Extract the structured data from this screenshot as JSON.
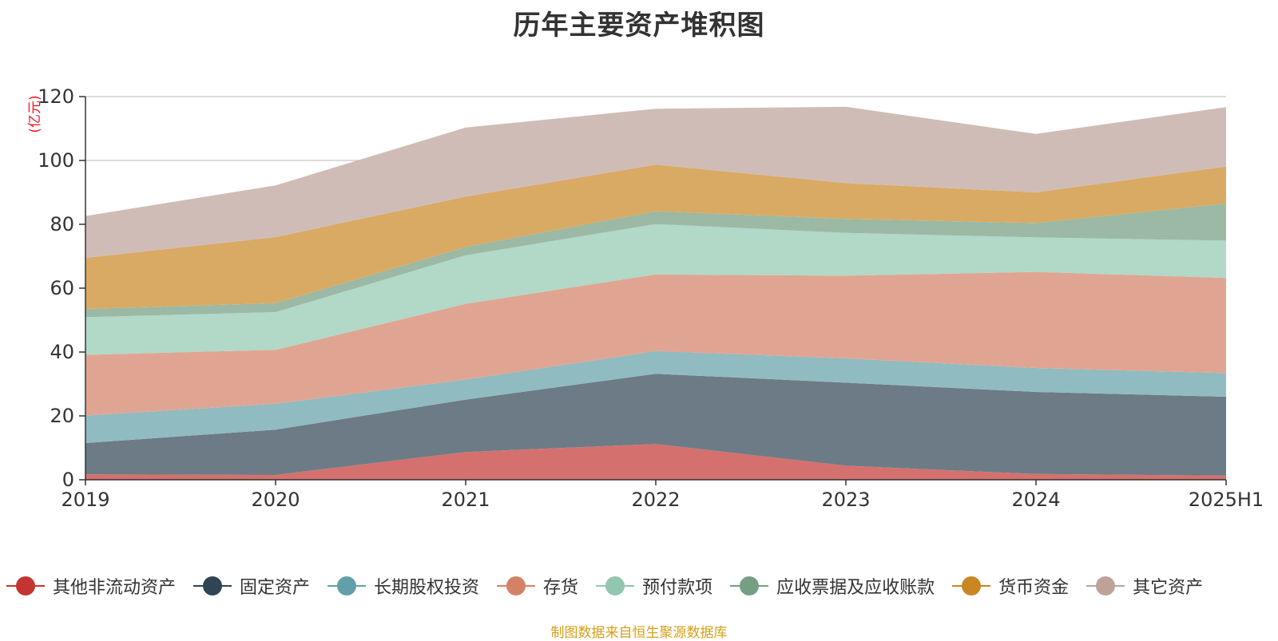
{
  "chart_data": {
    "type": "area",
    "stacked": true,
    "title": "历年主要资产堆积图",
    "ylabel": "(亿元)",
    "ylim": [
      0,
      120
    ],
    "yticks": [
      0,
      20,
      40,
      60,
      80,
      100,
      120
    ],
    "grid": true,
    "legend_position": "bottom",
    "categories": [
      "2019",
      "2020",
      "2021",
      "2022",
      "2023",
      "2024",
      "2025H1"
    ],
    "series": [
      {
        "name": "其他非流动资产",
        "color": "#c23531",
        "fill": "#d4716e",
        "values": [
          1.7,
          1.5,
          8.7,
          11.2,
          4.4,
          1.8,
          1.3
        ]
      },
      {
        "name": "固定资产",
        "color": "#2f4554",
        "fill": "#6d7b86",
        "values": [
          9.8,
          14.2,
          16.4,
          22.0,
          26.0,
          25.7,
          24.7
        ]
      },
      {
        "name": "长期股权投资",
        "color": "#61a0a8",
        "fill": "#90bbc1",
        "values": [
          8.6,
          8.1,
          6.3,
          7.1,
          7.6,
          7.5,
          7.4
        ]
      },
      {
        "name": "存货",
        "color": "#d48265",
        "fill": "#e0a592",
        "values": [
          19.0,
          16.9,
          23.7,
          24.0,
          25.9,
          30.1,
          29.8
        ]
      },
      {
        "name": "预付款项",
        "color": "#91c7ae",
        "fill": "#b2d8c7",
        "values": [
          11.8,
          11.8,
          15.2,
          15.8,
          13.4,
          10.8,
          11.7
        ]
      },
      {
        "name": "应收票据及应收账款",
        "color": "#749f83",
        "fill": "#9bb9a4",
        "values": [
          2.6,
          2.8,
          2.6,
          4.0,
          4.4,
          4.5,
          11.6
        ]
      },
      {
        "name": "货币资金",
        "color": "#ca8622",
        "fill": "#d9aa63",
        "values": [
          16.0,
          20.7,
          15.8,
          14.6,
          11.2,
          9.6,
          11.6
        ]
      },
      {
        "name": "其它资产",
        "color": "#bda29a",
        "fill": "#d0bcb7",
        "values": [
          13.1,
          16.2,
          21.6,
          17.5,
          23.9,
          18.3,
          18.6
        ]
      }
    ]
  },
  "source_note": "制图数据来自恒生聚源数据库"
}
